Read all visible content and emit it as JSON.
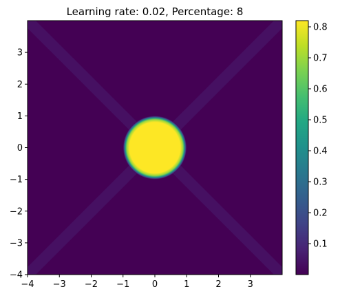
{
  "chart_data": {
    "type": "heatmap",
    "title": "Learning rate: 0.02, Percentage: 8",
    "xlabel": "",
    "ylabel": "",
    "xlim": [
      -4,
      4
    ],
    "ylim": [
      -4,
      4
    ],
    "x_ticks": [
      -4,
      -3,
      -2,
      -1,
      0,
      1,
      2,
      3
    ],
    "y_ticks": [
      -4,
      -3,
      -2,
      -1,
      0,
      1,
      2,
      3
    ],
    "x_tick_labels": [
      "−4",
      "−3",
      "−2",
      "−1",
      "0",
      "1",
      "2",
      "3"
    ],
    "y_tick_labels": [
      "−4",
      "−3",
      "−2",
      "−1",
      "0",
      "1",
      "2",
      "3"
    ],
    "colormap": "viridis",
    "colorbar": {
      "min": 0.0,
      "max": 0.82,
      "ticks": [
        0.1,
        0.2,
        0.3,
        0.4,
        0.5,
        0.6,
        0.7,
        0.8
      ],
      "tick_labels": [
        "0.1",
        "0.2",
        "0.3",
        "0.4",
        "0.5",
        "0.6",
        "0.7",
        "0.8"
      ]
    },
    "field": {
      "background": 0.0,
      "disk": {
        "center": [
          0,
          0
        ],
        "radius": 0.95,
        "value": 0.82
      },
      "diagonal_bands": {
        "width": 0.35,
        "value": 0.035,
        "directions": [
          "y=x",
          "y=-x"
        ]
      }
    },
    "grid": false
  }
}
